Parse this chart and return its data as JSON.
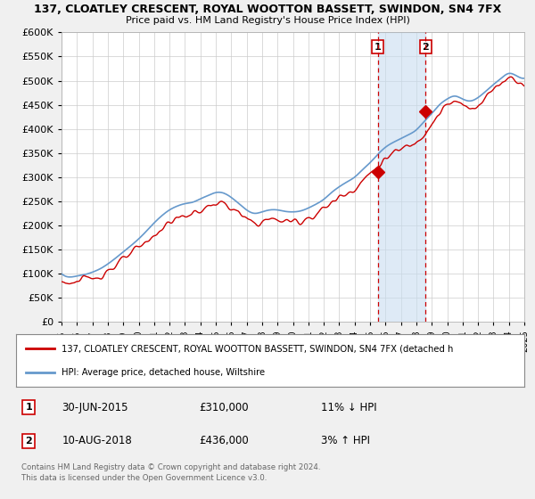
{
  "title1": "137, CLOATLEY CRESCENT, ROYAL WOOTTON BASSETT, SWINDON, SN4 7FX",
  "title2": "Price paid vs. HM Land Registry's House Price Index (HPI)",
  "ylim": [
    0,
    600000
  ],
  "ytick_vals": [
    0,
    50000,
    100000,
    150000,
    200000,
    250000,
    300000,
    350000,
    400000,
    450000,
    500000,
    550000,
    600000
  ],
  "background_color": "#f0f0f0",
  "plot_bg_color": "#ffffff",
  "hpi_color": "#6699cc",
  "hpi_fill_color": "#c8ddf0",
  "price_color": "#cc0000",
  "legend_label_price": "137, CLOATLEY CRESCENT, ROYAL WOOTTON BASSETT, SWINDON, SN4 7FX (detached h",
  "legend_label_hpi": "HPI: Average price, detached house, Wiltshire",
  "marker1_date": "30-JUN-2015",
  "marker1_price": 310000,
  "marker1_label": "11% ↓ HPI",
  "marker2_date": "10-AUG-2018",
  "marker2_price": 436000,
  "marker2_label": "3% ↑ HPI",
  "footnote1": "Contains HM Land Registry data © Crown copyright and database right 2024.",
  "footnote2": "This data is licensed under the Open Government Licence v3.0.",
  "marker1_x": 2015.5,
  "marker2_x": 2018.6,
  "xmin": 1995,
  "xmax": 2025
}
